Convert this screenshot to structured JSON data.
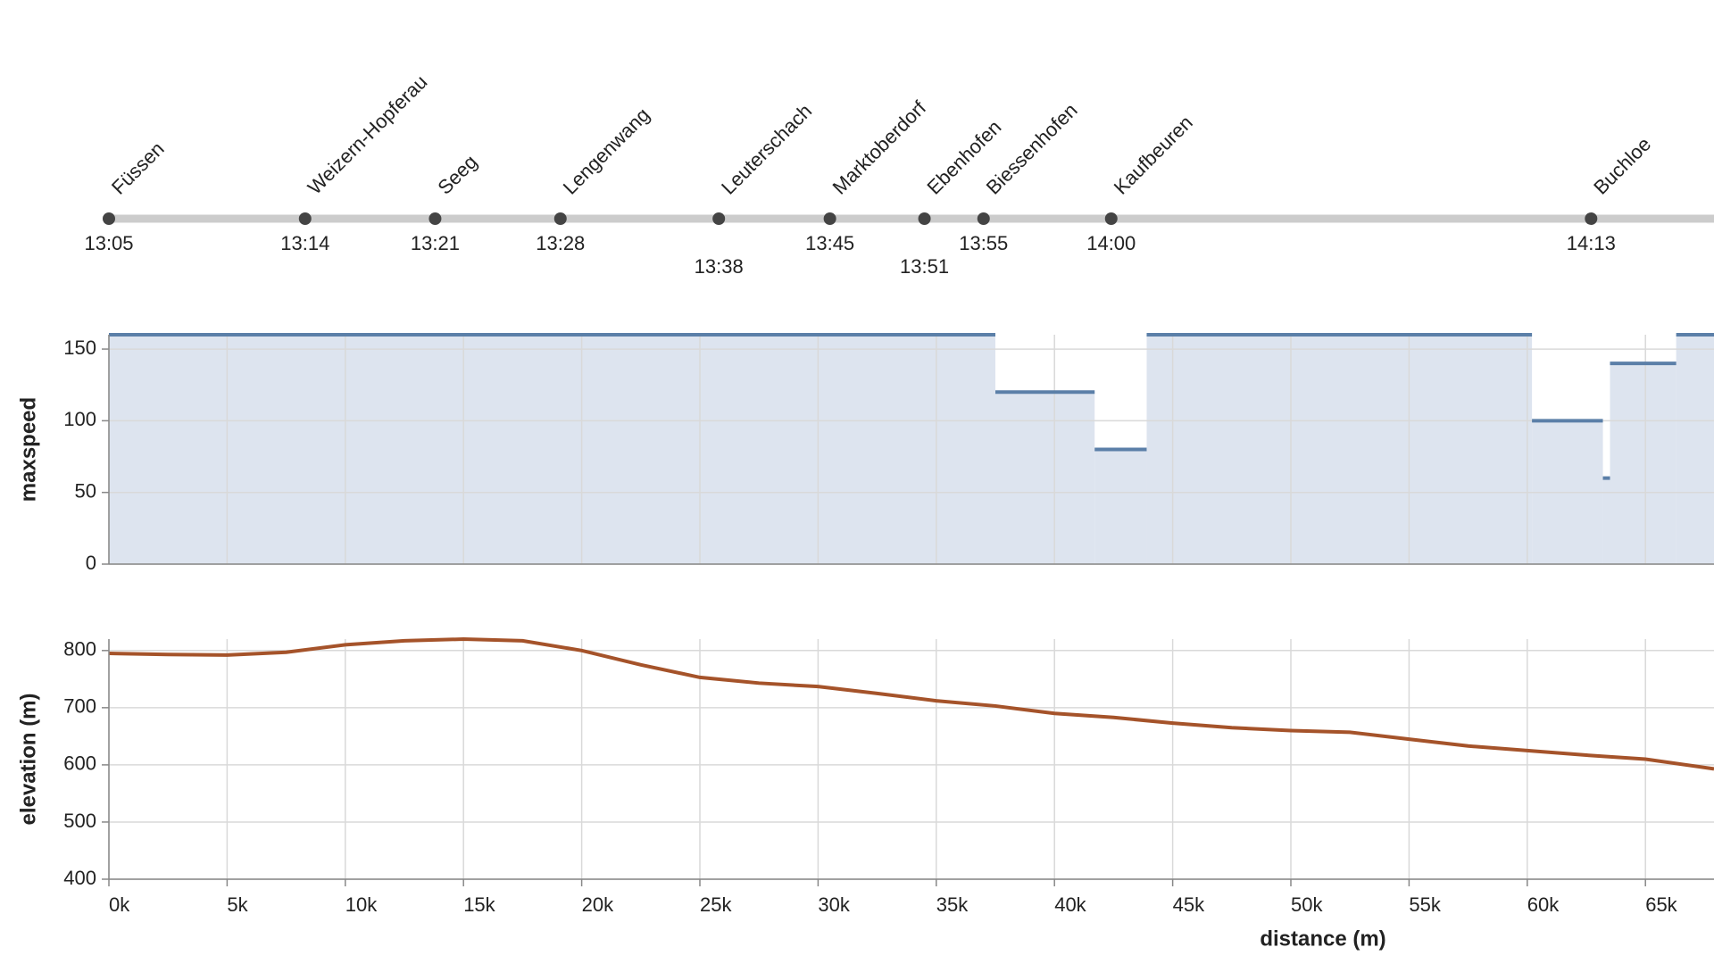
{
  "chart_data": [
    {
      "type": "timeline",
      "categories": [
        "Füssen",
        "Weizern-Hopferau",
        "Seeg",
        "Lengenwang",
        "Leuterschach",
        "Marktoberdorf",
        "Ebenhofen",
        "Biessenhofen",
        "Kaufbeuren",
        "Buchloe"
      ],
      "x": [
        0,
        8300,
        13800,
        19100,
        25800,
        30500,
        34500,
        37000,
        42400,
        62700
      ],
      "times": [
        "13:05",
        "13:14",
        "13:21",
        "13:28",
        "13:38",
        "13:45",
        "13:51",
        "13:55",
        "14:00",
        "14:13"
      ],
      "xlim": [
        0,
        67900
      ]
    },
    {
      "type": "step-area",
      "ylabel": "maxspeed",
      "x": [
        0,
        37500,
        41700,
        43900,
        60200,
        63200,
        63500,
        66300
      ],
      "values": [
        160,
        120,
        80,
        160,
        100,
        60,
        140,
        160
      ],
      "color": "#5b7fa8",
      "fill": "#dde4ef",
      "xlim": [
        0,
        67900
      ],
      "ylim": [
        0,
        160
      ],
      "yticks": [
        0,
        50,
        100,
        150
      ],
      "grid": true
    },
    {
      "type": "line",
      "ylabel": "elevation (m)",
      "xlabel": "distance (m)",
      "x": [
        0,
        2500,
        5000,
        7500,
        10000,
        12500,
        15000,
        17500,
        20000,
        22500,
        25000,
        27500,
        30000,
        32500,
        35000,
        37500,
        40000,
        42500,
        45000,
        47500,
        50000,
        52500,
        55000,
        57500,
        60000,
        62500,
        65000,
        67900
      ],
      "values": [
        795,
        793,
        792,
        797,
        810,
        817,
        820,
        817,
        800,
        775,
        753,
        743,
        737,
        725,
        712,
        703,
        690,
        683,
        673,
        665,
        660,
        657,
        645,
        633,
        625,
        617,
        610,
        593
      ],
      "color": "#a5532a",
      "xlim": [
        0,
        67900
      ],
      "ylim": [
        400,
        820
      ],
      "yticks": [
        400,
        500,
        600,
        700,
        800
      ],
      "xticks": [
        {
          "value": 0,
          "label": "0k"
        },
        {
          "value": 5000,
          "label": "5k"
        },
        {
          "value": 10000,
          "label": "10k"
        },
        {
          "value": 15000,
          "label": "15k"
        },
        {
          "value": 20000,
          "label": "20k"
        },
        {
          "value": 25000,
          "label": "25k"
        },
        {
          "value": 30000,
          "label": "30k"
        },
        {
          "value": 35000,
          "label": "35k"
        },
        {
          "value": 40000,
          "label": "40k"
        },
        {
          "value": 45000,
          "label": "45k"
        },
        {
          "value": 50000,
          "label": "50k"
        },
        {
          "value": 55000,
          "label": "55k"
        },
        {
          "value": 60000,
          "label": "60k"
        },
        {
          "value": 65000,
          "label": "65k"
        }
      ],
      "grid": true
    }
  ]
}
